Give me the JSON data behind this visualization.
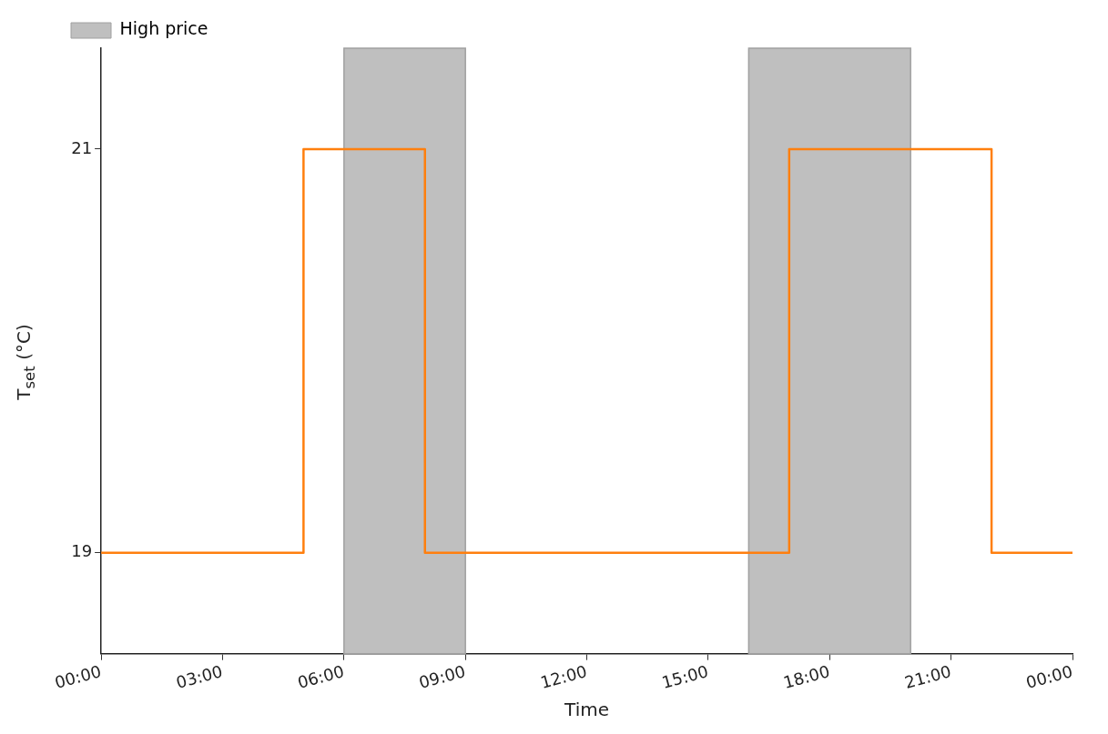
{
  "chart_data": {
    "type": "step",
    "xlabel": "Time",
    "ylabel": "T$_{set}$ (°C)",
    "series": [
      {
        "color": "#ff7f0e",
        "x": [
          0,
          5,
          8,
          17,
          22,
          24
        ],
        "values": [
          19,
          21,
          19,
          21,
          19,
          19
        ]
      }
    ],
    "xlim": [
      0,
      24
    ],
    "xticks": [
      {
        "value": 0,
        "label": "00:00"
      },
      {
        "value": 3,
        "label": "03:00"
      },
      {
        "value": 6,
        "label": "06:00"
      },
      {
        "value": 9,
        "label": "09:00"
      },
      {
        "value": 12,
        "label": "12:00"
      },
      {
        "value": 15,
        "label": "15:00"
      },
      {
        "value": 18,
        "label": "18:00"
      },
      {
        "value": 21,
        "label": "21:00"
      },
      {
        "value": 24,
        "label": "00:00"
      }
    ],
    "ylim": [
      18.5,
      21.5
    ],
    "yticks": [
      19,
      21
    ],
    "bands": [
      {
        "axis": "x",
        "from": 6,
        "to": 9,
        "label": "High price",
        "color": "#bfbfbf"
      },
      {
        "axis": "x",
        "from": 16,
        "to": 20,
        "color": "#bfbfbf"
      }
    ],
    "grid": false,
    "legend": "top left"
  }
}
